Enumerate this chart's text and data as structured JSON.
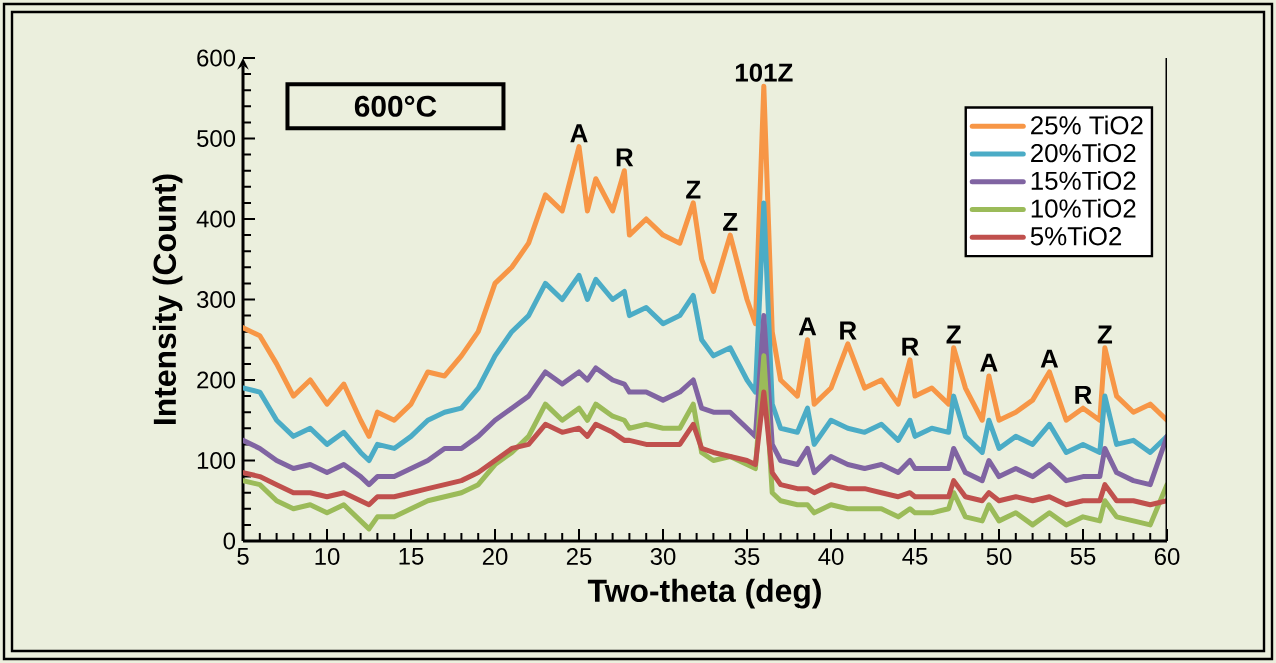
{
  "chart_data": {
    "type": "line",
    "xlabel": "Two-theta (deg)",
    "ylabel": "Intensity (Count)",
    "x": [
      5,
      6,
      7,
      8,
      9,
      10,
      11,
      12,
      12.5,
      13,
      14,
      15,
      16,
      17,
      18,
      19,
      20,
      21,
      22,
      23,
      24,
      25,
      25.5,
      26,
      27,
      27.7,
      28,
      29,
      30,
      31,
      31.8,
      32.3,
      33,
      34,
      35,
      35.5,
      36,
      36.5,
      37,
      38,
      38.6,
      39,
      40,
      41,
      42,
      43,
      44,
      44.7,
      45,
      46,
      47,
      47.3,
      48,
      49,
      49.4,
      50,
      51,
      52,
      53,
      54,
      55,
      56,
      56.3,
      57,
      58,
      59,
      60
    ],
    "series": [
      {
        "name": "25% TiO2",
        "color": "#f79646",
        "values": [
          265,
          255,
          220,
          180,
          200,
          170,
          195,
          150,
          130,
          160,
          150,
          170,
          210,
          205,
          230,
          260,
          320,
          340,
          370,
          430,
          410,
          490,
          410,
          450,
          410,
          460,
          380,
          400,
          380,
          370,
          420,
          350,
          310,
          380,
          300,
          270,
          565,
          260,
          200,
          180,
          250,
          170,
          190,
          245,
          190,
          200,
          170,
          225,
          180,
          190,
          170,
          240,
          190,
          150,
          205,
          150,
          160,
          175,
          210,
          150,
          165,
          150,
          240,
          180,
          160,
          170,
          150
        ]
      },
      {
        "name": "20%TiO2",
        "color": "#4bacc6",
        "values": [
          190,
          185,
          150,
          130,
          140,
          120,
          135,
          110,
          100,
          120,
          115,
          130,
          150,
          160,
          165,
          190,
          230,
          260,
          280,
          320,
          300,
          330,
          300,
          325,
          300,
          310,
          280,
          290,
          270,
          280,
          305,
          250,
          230,
          240,
          200,
          185,
          420,
          170,
          140,
          135,
          165,
          120,
          150,
          140,
          135,
          145,
          125,
          150,
          130,
          140,
          135,
          180,
          130,
          110,
          150,
          115,
          130,
          120,
          145,
          110,
          120,
          110,
          180,
          120,
          125,
          110,
          130
        ]
      },
      {
        "name": "15%TiO2",
        "color": "#8064a2",
        "values": [
          125,
          115,
          100,
          90,
          95,
          85,
          95,
          80,
          70,
          80,
          80,
          90,
          100,
          115,
          115,
          130,
          150,
          165,
          180,
          210,
          195,
          210,
          200,
          215,
          200,
          195,
          185,
          185,
          175,
          185,
          200,
          165,
          160,
          160,
          140,
          130,
          280,
          120,
          100,
          95,
          115,
          85,
          105,
          95,
          90,
          95,
          85,
          100,
          90,
          90,
          90,
          115,
          85,
          75,
          100,
          80,
          90,
          80,
          95,
          75,
          80,
          80,
          115,
          85,
          75,
          70,
          130
        ]
      },
      {
        "name": "10%TiO2",
        "color": "#9bbb59",
        "values": [
          75,
          70,
          50,
          40,
          45,
          35,
          45,
          25,
          15,
          30,
          30,
          40,
          50,
          55,
          60,
          70,
          95,
          110,
          130,
          170,
          150,
          165,
          150,
          170,
          155,
          150,
          140,
          145,
          140,
          140,
          170,
          110,
          100,
          105,
          95,
          90,
          230,
          60,
          50,
          45,
          45,
          35,
          45,
          40,
          40,
          40,
          30,
          40,
          35,
          35,
          40,
          60,
          30,
          25,
          45,
          25,
          35,
          20,
          35,
          20,
          30,
          25,
          50,
          30,
          25,
          20,
          70
        ]
      },
      {
        "name": "5%TiO2",
        "color": "#c0504d",
        "values": [
          85,
          80,
          70,
          60,
          60,
          55,
          60,
          50,
          45,
          55,
          55,
          60,
          65,
          70,
          75,
          85,
          100,
          115,
          120,
          145,
          135,
          140,
          130,
          145,
          135,
          125,
          125,
          120,
          120,
          120,
          145,
          115,
          110,
          105,
          100,
          95,
          185,
          85,
          70,
          65,
          65,
          60,
          70,
          65,
          65,
          60,
          55,
          60,
          55,
          55,
          55,
          75,
          55,
          50,
          60,
          50,
          55,
          50,
          55,
          45,
          50,
          50,
          70,
          50,
          50,
          45,
          50
        ]
      }
    ],
    "xlim": [
      5,
      60
    ],
    "ylim": [
      0,
      600
    ],
    "xticks": [
      5,
      10,
      15,
      20,
      25,
      30,
      35,
      40,
      45,
      50,
      55,
      60
    ],
    "yticks": [
      0,
      100,
      200,
      300,
      400,
      500,
      600
    ],
    "legend": "top right",
    "annotations": [
      "600°C",
      {
        "text": "A",
        "x": 25,
        "y": 490
      },
      {
        "text": "R",
        "x": 27.7,
        "y": 460
      },
      {
        "text": "Z",
        "x": 31.8,
        "y": 420
      },
      {
        "text": "Z",
        "x": 34,
        "y": 380
      },
      {
        "text": "101Z",
        "x": 36,
        "y": 565
      },
      {
        "text": "A",
        "x": 38.6,
        "y": 250
      },
      {
        "text": "R",
        "x": 41,
        "y": 245
      },
      {
        "text": "R",
        "x": 44.7,
        "y": 225
      },
      {
        "text": "Z",
        "x": 47.3,
        "y": 240
      },
      {
        "text": "A",
        "x": 49.4,
        "y": 205
      },
      {
        "text": "A",
        "x": 53,
        "y": 210
      },
      {
        "text": "R",
        "x": 55,
        "y": 165
      },
      {
        "text": "Z",
        "x": 56.3,
        "y": 240
      }
    ]
  }
}
